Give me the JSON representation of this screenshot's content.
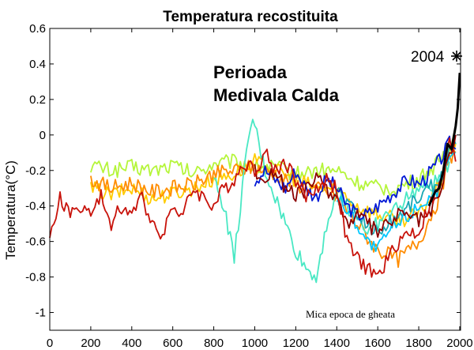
{
  "chart_data": {
    "type": "line",
    "title": "Temperatura recostituita",
    "xlabel": "",
    "ylabel": "Temperatura(°C)",
    "xlim": [
      0,
      2004
    ],
    "ylim": [
      -1.1,
      0.6
    ],
    "xticks": [
      0,
      200,
      400,
      600,
      800,
      1000,
      1200,
      1400,
      1600,
      1800,
      2000
    ],
    "yticks": [
      0.6,
      0.4,
      0.2,
      0,
      -0.2,
      -0.4,
      -0.6,
      -0.8,
      -1
    ],
    "ytick_labels": [
      "0.6",
      "0.4",
      "0.2",
      "0",
      "-0.2",
      "-0.4",
      "-0.6",
      "-0.8",
      "-1"
    ],
    "annotations": {
      "warm_period_line1": "Perioada",
      "warm_period_line2": "Medivala Calda",
      "little_ice_age": "Mica epoca de gheata",
      "year_2004": "2004"
    },
    "series": [
      {
        "name": "yellow-green",
        "color": "#b5f53a",
        "x": [
          200,
          300,
          400,
          500,
          600,
          700,
          800,
          900,
          1000,
          1100,
          1200,
          1300,
          1400,
          1500,
          1600,
          1700,
          1800,
          1900,
          1950,
          1980
        ],
        "y": [
          -0.17,
          -0.2,
          -0.18,
          -0.2,
          -0.17,
          -0.22,
          -0.16,
          -0.15,
          -0.18,
          -0.18,
          -0.22,
          -0.2,
          -0.2,
          -0.27,
          -0.3,
          -0.3,
          -0.25,
          -0.15,
          -0.05,
          0.02
        ]
      },
      {
        "name": "gold",
        "color": "#ffcc00",
        "x": [
          200,
          300,
          400,
          500,
          600,
          700,
          800,
          900,
          1000,
          1100,
          1200,
          1300,
          1400,
          1500,
          1600,
          1700,
          1800,
          1900,
          1950,
          1980
        ],
        "y": [
          -0.3,
          -0.34,
          -0.3,
          -0.36,
          -0.33,
          -0.3,
          -0.25,
          -0.22,
          -0.15,
          -0.2,
          -0.25,
          -0.3,
          -0.3,
          -0.4,
          -0.45,
          -0.48,
          -0.45,
          -0.28,
          -0.1,
          -0.05
        ]
      },
      {
        "name": "orange",
        "color": "#ff8c00",
        "x": [
          200,
          300,
          400,
          500,
          600,
          700,
          800,
          900,
          1000,
          1100,
          1200,
          1300,
          1400,
          1500,
          1600,
          1700,
          1800,
          1900,
          1950,
          1980
        ],
        "y": [
          -0.25,
          -0.3,
          -0.27,
          -0.32,
          -0.3,
          -0.28,
          -0.22,
          -0.2,
          -0.18,
          -0.22,
          -0.28,
          -0.3,
          -0.35,
          -0.5,
          -0.65,
          -0.7,
          -0.6,
          -0.35,
          -0.15,
          -0.1
        ]
      },
      {
        "name": "aquamarine",
        "color": "#49e8c4",
        "x": [
          800,
          850,
          900,
          950,
          990,
          1050,
          1100,
          1150,
          1200,
          1250,
          1300,
          1350,
          1400,
          1450,
          1500,
          1550,
          1600,
          1650,
          1700,
          1750,
          1800,
          1850,
          1900,
          1950
        ],
        "y": [
          -0.25,
          -0.4,
          -0.7,
          -0.2,
          0.1,
          -0.2,
          -0.35,
          -0.5,
          -0.65,
          -0.75,
          -0.8,
          -0.5,
          -0.35,
          -0.4,
          -0.45,
          -0.55,
          -0.5,
          -0.45,
          -0.4,
          -0.35,
          -0.3,
          -0.3,
          -0.25,
          -0.15
        ]
      },
      {
        "name": "teal",
        "color": "#19a7b3",
        "x": [
          1400,
          1450,
          1500,
          1550,
          1600,
          1650,
          1700,
          1750,
          1800,
          1850,
          1900,
          1950,
          1980
        ],
        "y": [
          -0.3,
          -0.38,
          -0.45,
          -0.5,
          -0.55,
          -0.5,
          -0.45,
          -0.4,
          -0.35,
          -0.3,
          -0.25,
          -0.1,
          -0.05
        ]
      },
      {
        "name": "sky-blue",
        "color": "#00c8ff",
        "x": [
          1400,
          1450,
          1500,
          1550,
          1600,
          1650,
          1700,
          1750,
          1800,
          1850,
          1900,
          1950,
          1980
        ],
        "y": [
          -0.35,
          -0.42,
          -0.5,
          -0.6,
          -0.65,
          -0.55,
          -0.5,
          -0.45,
          -0.4,
          -0.35,
          -0.3,
          -0.15,
          -0.1
        ]
      },
      {
        "name": "blue",
        "color": "#0018d6",
        "x": [
          1000,
          1050,
          1100,
          1150,
          1200,
          1250,
          1300,
          1350,
          1400,
          1450,
          1500,
          1550,
          1600,
          1650,
          1700,
          1750,
          1800,
          1850,
          1900,
          1950,
          1980
        ],
        "y": [
          -0.25,
          -0.2,
          -0.25,
          -0.3,
          -0.2,
          -0.3,
          -0.35,
          -0.25,
          -0.3,
          -0.4,
          -0.45,
          -0.45,
          -0.4,
          -0.35,
          -0.3,
          -0.25,
          -0.28,
          -0.22,
          -0.15,
          -0.05,
          -0.08
        ]
      },
      {
        "name": "maroon",
        "color": "#8b0000",
        "x": [
          1000,
          1050,
          1100,
          1150,
          1200,
          1250,
          1300,
          1350,
          1400,
          1450,
          1500,
          1550,
          1600,
          1650,
          1700,
          1750,
          1800,
          1850,
          1900,
          1950,
          1980
        ],
        "y": [
          -0.2,
          -0.25,
          -0.2,
          -0.3,
          -0.35,
          -0.3,
          -0.25,
          -0.3,
          -0.35,
          -0.5,
          -0.45,
          -0.5,
          -0.55,
          -0.5,
          -0.45,
          -0.45,
          -0.48,
          -0.45,
          -0.35,
          -0.1,
          0.0
        ]
      },
      {
        "name": "dark-red",
        "color": "#c8120a",
        "x": [
          0,
          50,
          100,
          150,
          200,
          250,
          300,
          350,
          400,
          450,
          500,
          550,
          600,
          650,
          700,
          750,
          800,
          850,
          900,
          950,
          1000,
          1050,
          1100,
          1150,
          1200,
          1250,
          1300,
          1350,
          1400,
          1450,
          1500,
          1550,
          1600,
          1650,
          1700,
          1750,
          1800,
          1850,
          1900,
          1950,
          1980
        ],
        "y": [
          -0.6,
          -0.35,
          -0.45,
          -0.4,
          -0.45,
          -0.35,
          -0.5,
          -0.4,
          -0.45,
          -0.35,
          -0.5,
          -0.55,
          -0.4,
          -0.45,
          -0.3,
          -0.35,
          -0.4,
          -0.3,
          -0.25,
          -0.15,
          -0.2,
          -0.1,
          -0.2,
          -0.15,
          -0.25,
          -0.35,
          -0.3,
          -0.25,
          -0.3,
          -0.6,
          -0.7,
          -0.75,
          -0.8,
          -0.7,
          -0.6,
          -0.55,
          -0.55,
          -0.4,
          -0.3,
          -0.05,
          -0.15
        ]
      },
      {
        "name": "instrumental",
        "color": "#000000",
        "x": [
          1850,
          1880,
          1900,
          1920,
          1940,
          1960,
          1980,
          1990,
          2000
        ],
        "y": [
          -0.4,
          -0.32,
          -0.3,
          -0.2,
          -0.05,
          -0.08,
          0.05,
          0.15,
          0.35
        ]
      }
    ]
  }
}
